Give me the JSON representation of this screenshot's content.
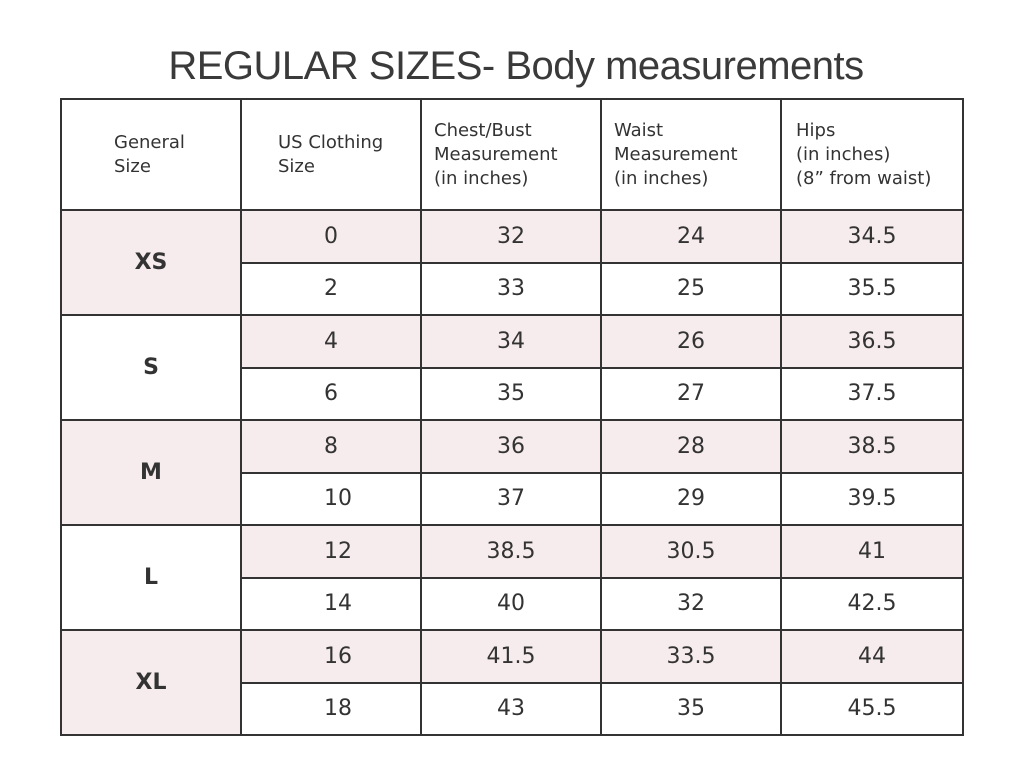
{
  "title": "REGULAR SIZES- Body measurements",
  "colors": {
    "row_highlight": "#f7eced",
    "border": "#333333"
  },
  "headers": [
    [
      "General",
      "Size"
    ],
    [
      "US Clothing",
      "Size"
    ],
    [
      "Chest/Bust",
      "Measurement",
      "(in inches)"
    ],
    [
      "Waist",
      "Measurement",
      "(in inches)"
    ],
    [
      "Hips",
      "(in inches)",
      "(8” from waist)"
    ]
  ],
  "groups": [
    {
      "general": "XS",
      "rows": [
        [
          "0",
          "32",
          "24",
          "34.5"
        ],
        [
          "2",
          "33",
          "25",
          "35.5"
        ]
      ]
    },
    {
      "general": "S",
      "rows": [
        [
          "4",
          "34",
          "26",
          "36.5"
        ],
        [
          "6",
          "35",
          "27",
          "37.5"
        ]
      ]
    },
    {
      "general": "M",
      "rows": [
        [
          "8",
          "36",
          "28",
          "38.5"
        ],
        [
          "10",
          "37",
          "29",
          "39.5"
        ]
      ]
    },
    {
      "general": "L",
      "rows": [
        [
          "12",
          "38.5",
          "30.5",
          "41"
        ],
        [
          "14",
          "40",
          "32",
          "42.5"
        ]
      ]
    },
    {
      "general": "XL",
      "rows": [
        [
          "16",
          "41.5",
          "33.5",
          "44"
        ],
        [
          "18",
          "43",
          "35",
          "45.5"
        ]
      ]
    }
  ]
}
